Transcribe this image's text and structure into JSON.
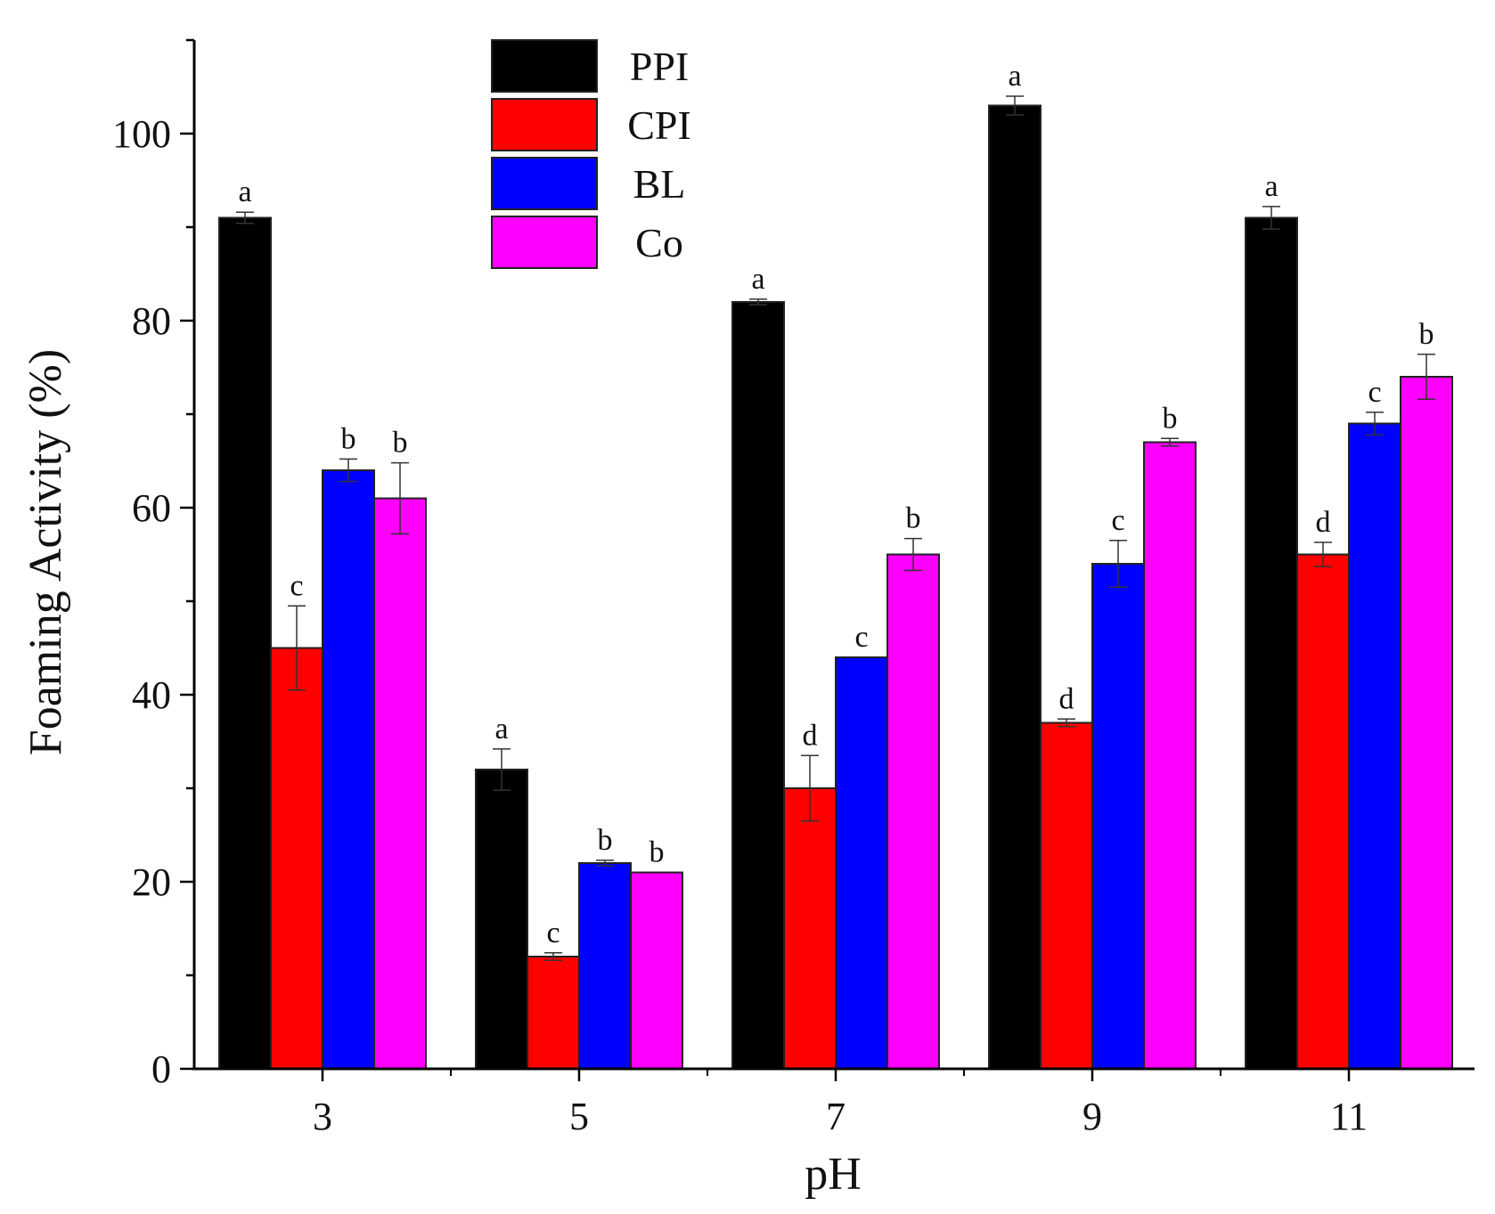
{
  "chart_data": {
    "type": "bar",
    "title": "",
    "xlabel": "pH",
    "ylabel": "Foaming Activity (%)",
    "categories": [
      "3",
      "5",
      "7",
      "9",
      "11"
    ],
    "ylim": [
      0,
      110
    ],
    "yticks": [
      0,
      20,
      40,
      60,
      80,
      100
    ],
    "legend_position": "top-center",
    "series": [
      {
        "name": "PPI",
        "color": "#000000",
        "values": [
          91,
          32,
          82,
          103,
          91
        ],
        "errors": [
          0.6,
          2.2,
          0.3,
          1.0,
          1.2
        ],
        "labels": [
          "a",
          "a",
          "a",
          "a",
          "a"
        ]
      },
      {
        "name": "CPI",
        "color": "#ff0000",
        "values": [
          45,
          12,
          30,
          37,
          55
        ],
        "errors": [
          4.5,
          0.4,
          3.5,
          0.4,
          1.3
        ],
        "labels": [
          "c",
          "c",
          "d",
          "d",
          "d"
        ]
      },
      {
        "name": "BL",
        "color": "#0000ff",
        "values": [
          64,
          22,
          44,
          54,
          69
        ],
        "errors": [
          1.2,
          0.3,
          0.0,
          2.5,
          1.2
        ],
        "labels": [
          "b",
          "b",
          "c",
          "c",
          "c"
        ]
      },
      {
        "name": "Co",
        "color": "#ff00ff",
        "values": [
          61,
          21,
          55,
          67,
          74
        ],
        "errors": [
          3.8,
          0.0,
          1.7,
          0.4,
          2.4
        ],
        "labels": [
          "b",
          "b",
          "b",
          "b",
          "b"
        ]
      }
    ]
  }
}
